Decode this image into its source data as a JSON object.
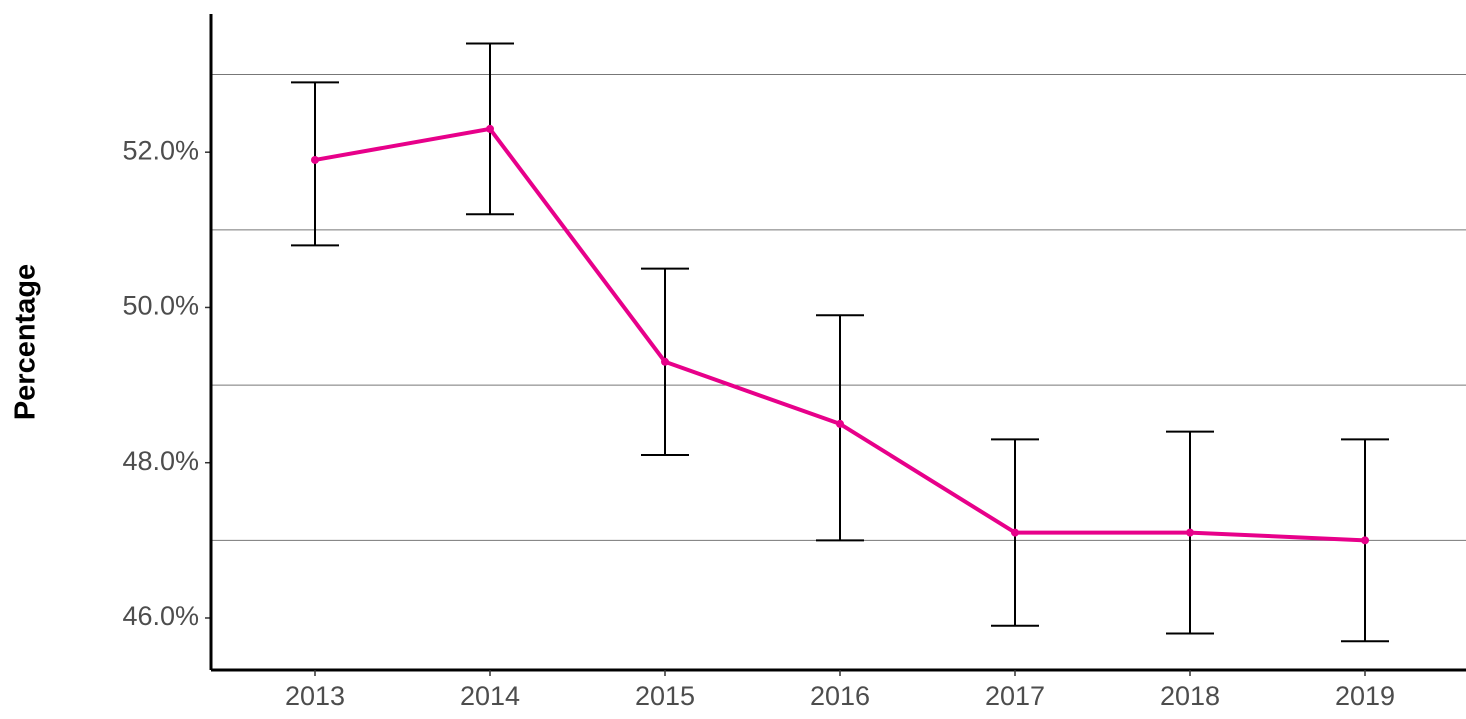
{
  "chart_data": {
    "type": "line",
    "y_label": "Percentage",
    "categories": [
      "2013",
      "2014",
      "2015",
      "2016",
      "2017",
      "2018",
      "2019"
    ],
    "series": [
      {
        "color": "#e7008a",
        "values": [
          51.9,
          52.3,
          49.3,
          48.5,
          47.1,
          47.1,
          47.0
        ],
        "lower": [
          50.8,
          51.2,
          48.1,
          47.0,
          45.9,
          45.8,
          45.7
        ],
        "upper": [
          52.9,
          53.4,
          50.5,
          49.9,
          48.3,
          48.4,
          48.3
        ]
      }
    ],
    "error_color": "#000000",
    "ylim": [
      45.33,
      53.78
    ],
    "yticks": [
      {
        "value": 46,
        "label": "46.0%"
      },
      {
        "value": 48,
        "label": "48.0%"
      },
      {
        "value": 50,
        "label": "50.0%"
      },
      {
        "value": 52,
        "label": "52.0%"
      }
    ],
    "ygrid": [
      47,
      49,
      51,
      53
    ]
  }
}
